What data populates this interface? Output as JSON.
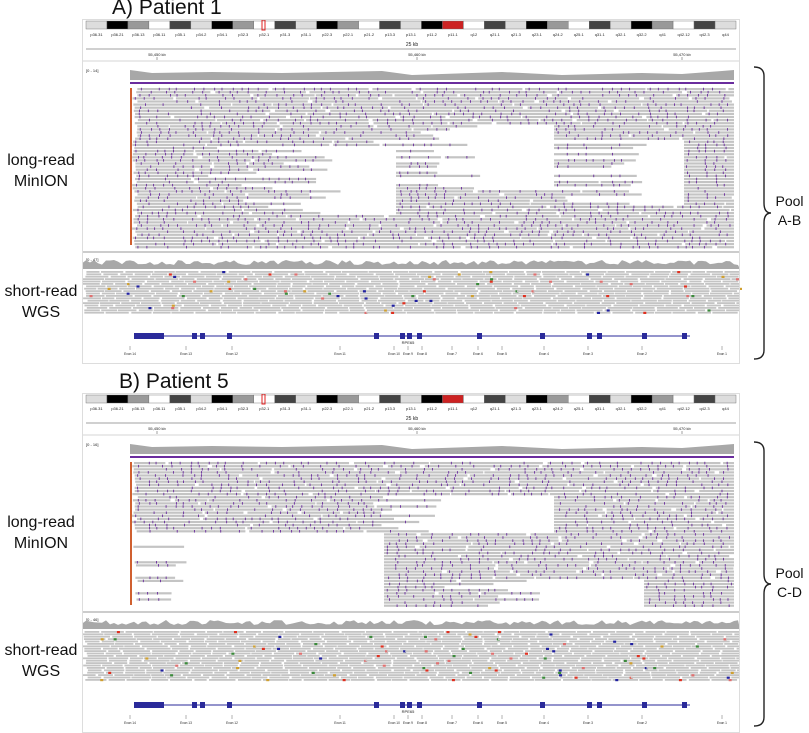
{
  "panels": [
    {
      "title": "A) Patient 1",
      "ideogram_bands": [
        "p36.31",
        "p36.21",
        "p36.13",
        "p36.11",
        "p35.1",
        "p34.2",
        "p34.1",
        "p32.3",
        "p32.1",
        "p31.3",
        "p31.1",
        "p22.3",
        "p22.1",
        "p21.2",
        "p13.3",
        "p13.1",
        "p11.2",
        "p11.1",
        "q12",
        "q21.1",
        "q21.3",
        "q23.1",
        "q24.2",
        "q25.1",
        "q31.1",
        "q32.1",
        "q32.2",
        "q41",
        "q42.12",
        "q42.3",
        "q44"
      ],
      "scale_label": "25 kb",
      "ruler_ticks": [
        "55,450 kb",
        "55,460 kb",
        "55,470 kb"
      ],
      "long_track_label": "[0 - 14]",
      "short_track_label": "[0 - 47]",
      "gene_name": "RPE65",
      "exon_labels": [
        "Exon 14",
        "Exon 13",
        "Exon 12",
        "Exon 11",
        "Exon 10",
        "Exon 9",
        "Exon 8",
        "Exon 7",
        "Exon 6",
        "Exon 5",
        "Exon 4",
        "Exon 3",
        "Exon 2",
        "Exon 1"
      ],
      "long_read_label": [
        "long-read",
        "MinION"
      ],
      "short_read_label": [
        "short-read",
        "WGS"
      ],
      "pool_label": [
        "Pool",
        "A-B"
      ]
    },
    {
      "title": "B) Patient 5",
      "ideogram_bands": [
        "p36.31",
        "p36.21",
        "p36.13",
        "p36.11",
        "p35.1",
        "p34.2",
        "p34.1",
        "p32.3",
        "p32.1",
        "p31.3",
        "p31.1",
        "p22.3",
        "p22.1",
        "p21.2",
        "p13.3",
        "p13.1",
        "p11.2",
        "p11.1",
        "q12",
        "q21.1",
        "q21.3",
        "q23.1",
        "q24.2",
        "q25.1",
        "q31.1",
        "q32.1",
        "q32.2",
        "q41",
        "q42.12",
        "q42.3",
        "q44"
      ],
      "scale_label": "25 kb",
      "ruler_ticks": [
        "55,450 kb",
        "55,460 kb",
        "55,470 kb"
      ],
      "long_track_label": "[0 - 16]",
      "short_track_label": "[0 - 46]",
      "gene_name": "RPE65",
      "exon_labels": [
        "Exon 14",
        "Exon 13",
        "Exon 12",
        "Exon 11",
        "Exon 10",
        "Exon 9",
        "Exon 8",
        "Exon 7",
        "Exon 6",
        "Exon 5",
        "Exon 4",
        "Exon 3",
        "Exon 2",
        "Exon 1"
      ],
      "long_read_label": [
        "long-read",
        "MinION"
      ],
      "short_read_label": [
        "short-read",
        "WGS"
      ],
      "pool_label": [
        "Pool",
        "C-D"
      ]
    }
  ],
  "colors": {
    "read_gray": "#c4c4c4",
    "coverage_gray": "#a8a8a8",
    "insertion_purple": "#6a2c9e",
    "gene_blue": "#2a2a9a",
    "mismatch_red": "#e03020",
    "mismatch_green": "#3a8a3a"
  }
}
